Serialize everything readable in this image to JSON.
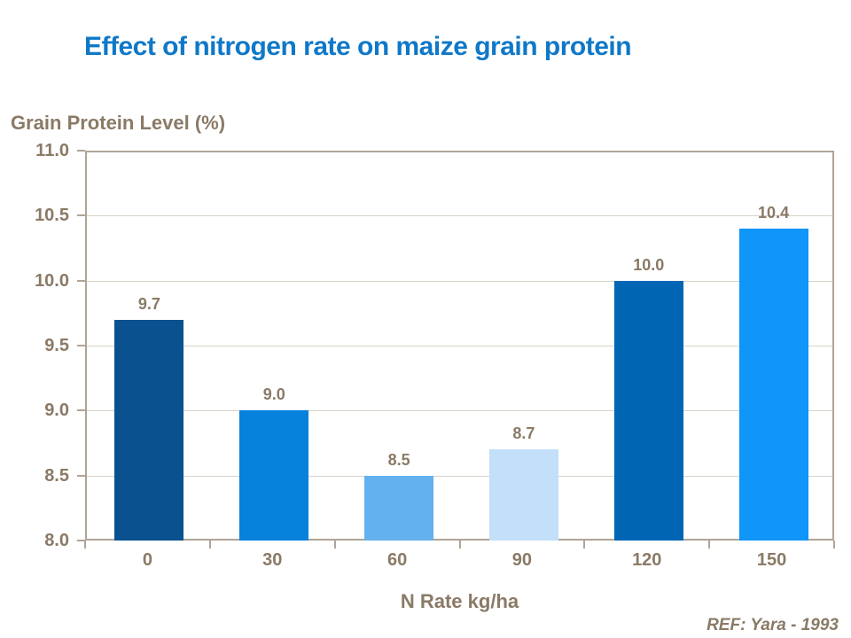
{
  "title": "Effect of nitrogen rate on maize grain protein",
  "ref_note": "REF: Yara - 1993",
  "colors": {
    "title": "#0F78C8",
    "text": "#8A7A66",
    "frame": "#B1A496",
    "grid": "#D9D3CA"
  },
  "chart_data": {
    "type": "bar",
    "title": "Effect of nitrogen rate on maize grain protein",
    "xlabel": "N Rate kg/ha",
    "ylabel": "Grain Protein Level (%)",
    "categories": [
      "0",
      "30",
      "60",
      "90",
      "120",
      "150"
    ],
    "values": [
      9.7,
      9.0,
      8.5,
      8.7,
      10.0,
      10.4
    ],
    "data_labels": [
      "9.7",
      "9.0",
      "8.5",
      "8.7",
      "10.0",
      "10.4"
    ],
    "bar_colors": [
      "#09528F",
      "#0681DC",
      "#63B1EE",
      "#C3DFF9",
      "#0066B4",
      "#1095F9"
    ],
    "ylim": [
      8.0,
      11.0
    ],
    "ytick_step": 0.5,
    "ytick_labels": [
      "11.0",
      "10.5",
      "10.0",
      "9.5",
      "9.0",
      "8.5",
      "8.0"
    ],
    "grid": true,
    "legend": false,
    "annotation": "REF: Yara - 1993"
  }
}
